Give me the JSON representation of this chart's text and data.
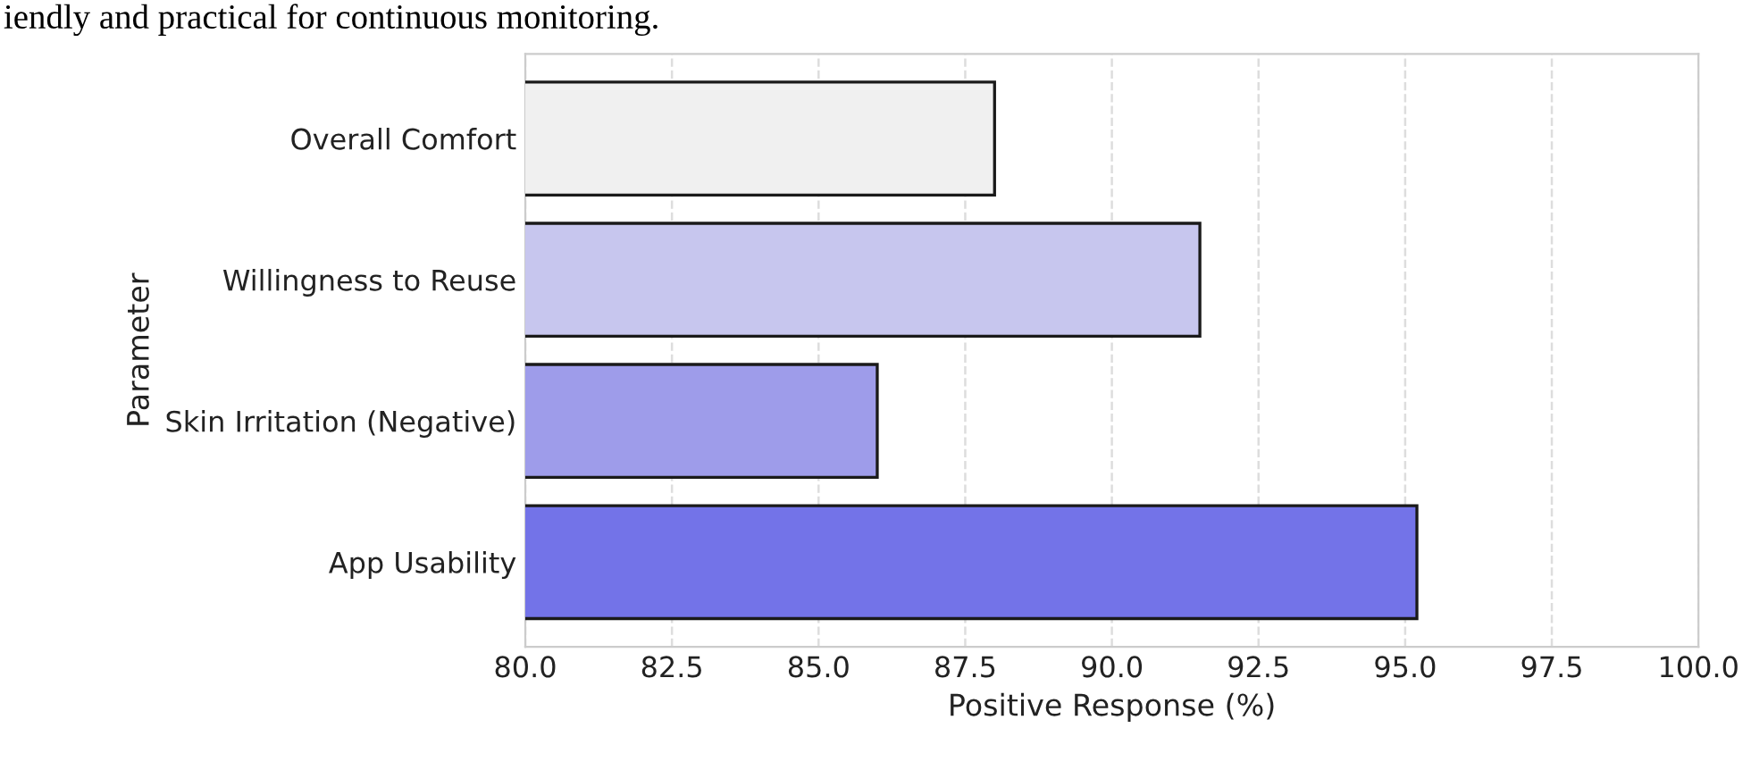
{
  "chart_data": {
    "type": "bar",
    "orientation": "horizontal",
    "categories": [
      "Overall Comfort",
      "Willingness to Reuse",
      "Skin Irritation (Negative)",
      "App Usability"
    ],
    "values": [
      88.0,
      91.5,
      86.0,
      95.2
    ],
    "colors": [
      "#f0f0f0",
      "#c7c6ee",
      "#9e9cea",
      "#7373e8"
    ],
    "xlabel": "Positive Response (%)",
    "ylabel": "Parameter",
    "xlim": [
      80,
      100
    ],
    "xticks": [
      {
        "value": 80,
        "label": "80.0"
      },
      {
        "value": 82.5,
        "label": "82.5"
      },
      {
        "value": 85,
        "label": "85.0"
      },
      {
        "value": 87.5,
        "label": "87.5"
      },
      {
        "value": 90,
        "label": "90.0"
      },
      {
        "value": 92.5,
        "label": "92.5"
      },
      {
        "value": 95,
        "label": "95.0"
      },
      {
        "value": 97.5,
        "label": "97.5"
      },
      {
        "value": 100,
        "label": "100.0"
      }
    ],
    "grid": "x",
    "annotations": [
      "iendly and practical for continuous monitoring."
    ]
  }
}
